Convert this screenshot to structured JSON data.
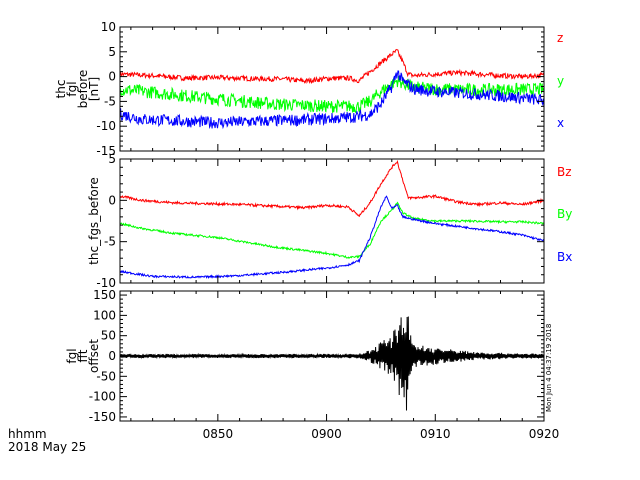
{
  "footer": {
    "line1": "hhmm",
    "line2": "2018 May 25",
    "stamp": "Mon Jun  4 04:37:19 2018"
  },
  "colors": {
    "red": "#ff0000",
    "green": "#00ff00",
    "blue": "#0000ff",
    "black": "#000000"
  },
  "chart_data": [
    {
      "type": "line",
      "ylabel_lines": [
        "thc",
        "fgl",
        "before",
        "[nT]"
      ],
      "ylim": [
        -15,
        10
      ],
      "yticks": [
        -15,
        -10,
        -5,
        0,
        5,
        10
      ],
      "xlim": [
        "08:41",
        "09:20"
      ],
      "xticks": [
        "0850",
        "0900",
        "0910",
        "0920"
      ],
      "grid": false,
      "legend": "right",
      "series": [
        {
          "name": "z",
          "color": "#ff0000",
          "noise": 0.5,
          "points": [
            [
              "08:41",
              0.5
            ],
            [
              "08:44",
              0.2
            ],
            [
              "08:47",
              -0.3
            ],
            [
              "08:50",
              -0.2
            ],
            [
              "08:53",
              -0.4
            ],
            [
              "08:56",
              -0.5
            ],
            [
              "08:58",
              -0.9
            ],
            [
              "09:00",
              -0.4
            ],
            [
              "09:02",
              -0.3
            ],
            [
              "09:03",
              -0.8
            ],
            [
              "09:04",
              1.0
            ],
            [
              "09:05",
              2.8
            ],
            [
              "09:06",
              4.5
            ],
            [
              "09:06:30",
              5.2
            ],
            [
              "09:07",
              3.0
            ],
            [
              "09:07:30",
              0.5
            ],
            [
              "09:08",
              0.2
            ],
            [
              "09:10",
              0.5
            ],
            [
              "09:12",
              0.8
            ],
            [
              "09:14",
              0.5
            ],
            [
              "09:16",
              0.2
            ],
            [
              "09:18",
              0.0
            ],
            [
              "09:20",
              0.3
            ]
          ]
        },
        {
          "name": "y",
          "color": "#00ff00",
          "noise": 1.3,
          "points": [
            [
              "08:41",
              -2.5
            ],
            [
              "08:45",
              -3.4
            ],
            [
              "08:50",
              -4.5
            ],
            [
              "08:55",
              -5.5
            ],
            [
              "09:00",
              -6.0
            ],
            [
              "09:03",
              -6.0
            ],
            [
              "09:04",
              -5.0
            ],
            [
              "09:05",
              -3.0
            ],
            [
              "09:06",
              -1.5
            ],
            [
              "09:06:30",
              -0.8
            ],
            [
              "09:07",
              -1.3
            ],
            [
              "09:08",
              -2.2
            ],
            [
              "09:10",
              -2.5
            ],
            [
              "09:14",
              -2.7
            ],
            [
              "09:17",
              -2.6
            ],
            [
              "09:20",
              -2.6
            ]
          ]
        },
        {
          "name": "x",
          "color": "#0000ff",
          "noise": 1.2,
          "points": [
            [
              "08:41",
              -7.5
            ],
            [
              "08:43",
              -8.6
            ],
            [
              "08:47",
              -9.0
            ],
            [
              "08:50",
              -9.3
            ],
            [
              "08:54",
              -9.0
            ],
            [
              "08:58",
              -8.7
            ],
            [
              "09:01",
              -8.4
            ],
            [
              "09:03",
              -8.0
            ],
            [
              "09:04",
              -7.6
            ],
            [
              "09:05",
              -5.5
            ],
            [
              "09:06",
              -2.0
            ],
            [
              "09:06:30",
              1.0
            ],
            [
              "09:07",
              -1.0
            ],
            [
              "09:07:30",
              -1.6
            ],
            [
              "09:08",
              -2.5
            ],
            [
              "09:10",
              -3.0
            ],
            [
              "09:13",
              -3.4
            ],
            [
              "09:16",
              -3.9
            ],
            [
              "09:18",
              -4.3
            ],
            [
              "09:20",
              -4.8
            ]
          ]
        }
      ]
    },
    {
      "type": "line",
      "ylabel_lines": [
        "thc_fgs_before"
      ],
      "ylim": [
        -10,
        5
      ],
      "yticks": [
        -10,
        -5,
        0,
        5
      ],
      "xlim": [
        "08:41",
        "09:20"
      ],
      "xticks": [
        "0850",
        "0900",
        "0910",
        "0920"
      ],
      "grid": false,
      "legend": "right",
      "series": [
        {
          "name": "Bz",
          "color": "#ff0000",
          "noise": 0.15,
          "points": [
            [
              "08:41",
              0.5
            ],
            [
              "08:43",
              0.0
            ],
            [
              "08:46",
              -0.3
            ],
            [
              "08:49",
              -0.4
            ],
            [
              "08:52",
              -0.5
            ],
            [
              "08:55",
              -0.7
            ],
            [
              "08:58",
              -0.9
            ],
            [
              "09:00",
              -0.6
            ],
            [
              "09:02",
              -0.8
            ],
            [
              "09:03",
              -1.9
            ],
            [
              "09:04",
              -0.3
            ],
            [
              "09:05",
              2.0
            ],
            [
              "09:06",
              4.0
            ],
            [
              "09:06:30",
              4.7
            ],
            [
              "09:07",
              2.5
            ],
            [
              "09:07:30",
              0.3
            ],
            [
              "09:08",
              0.3
            ],
            [
              "09:10",
              0.5
            ],
            [
              "09:12",
              -0.2
            ],
            [
              "09:14",
              -0.5
            ],
            [
              "09:16",
              -0.3
            ],
            [
              "09:18",
              -0.5
            ],
            [
              "09:20",
              0.0
            ]
          ]
        },
        {
          "name": "By",
          "color": "#00ff00",
          "noise": 0.12,
          "points": [
            [
              "08:41",
              -2.8
            ],
            [
              "08:43",
              -3.4
            ],
            [
              "08:46",
              -4.0
            ],
            [
              "08:50",
              -4.5
            ],
            [
              "08:55",
              -5.6
            ],
            [
              "09:00",
              -6.4
            ],
            [
              "09:02",
              -6.9
            ],
            [
              "09:03",
              -6.8
            ],
            [
              "09:04",
              -5.3
            ],
            [
              "09:05",
              -2.5
            ],
            [
              "09:06",
              -1.2
            ],
            [
              "09:06:30",
              -0.3
            ],
            [
              "09:07",
              -1.5
            ],
            [
              "09:08",
              -2.2
            ],
            [
              "09:10",
              -2.5
            ],
            [
              "09:13",
              -2.5
            ],
            [
              "09:16",
              -2.6
            ],
            [
              "09:18",
              -2.6
            ],
            [
              "09:20",
              -2.8
            ]
          ]
        },
        {
          "name": "Bx",
          "color": "#0000ff",
          "noise": 0.12,
          "points": [
            [
              "08:41",
              -8.6
            ],
            [
              "08:44",
              -9.2
            ],
            [
              "08:48",
              -9.3
            ],
            [
              "08:52",
              -9.1
            ],
            [
              "08:56",
              -8.7
            ],
            [
              "09:00",
              -8.2
            ],
            [
              "09:02",
              -7.8
            ],
            [
              "09:03",
              -7.3
            ],
            [
              "09:04",
              -4.5
            ],
            [
              "09:05",
              -0.8
            ],
            [
              "09:05:30",
              0.5
            ],
            [
              "09:06",
              -1.0
            ],
            [
              "09:06:30",
              -0.6
            ],
            [
              "09:07",
              -2.0
            ],
            [
              "09:08",
              -2.3
            ],
            [
              "09:10",
              -2.8
            ],
            [
              "09:13",
              -3.3
            ],
            [
              "09:16",
              -3.8
            ],
            [
              "09:18",
              -4.2
            ],
            [
              "09:20",
              -4.9
            ]
          ]
        }
      ]
    },
    {
      "type": "line",
      "ylabel_lines": [
        "fgl",
        "fft",
        "offset"
      ],
      "ylim": [
        -160,
        160
      ],
      "yticks": [
        -150,
        -100,
        -50,
        0,
        50,
        100,
        150
      ],
      "xlim": [
        "08:41",
        "09:20"
      ],
      "xticks": [
        "0850",
        "0900",
        "0910",
        "0920"
      ],
      "grid": false,
      "series": [
        {
          "name": "",
          "color": "#000000",
          "envelope": [
            [
              "08:41",
              5
            ],
            [
              "09:00",
              5
            ],
            [
              "09:03",
              6
            ],
            [
              "09:04",
              15
            ],
            [
              "09:05",
              35
            ],
            [
              "09:06",
              55
            ],
            [
              "09:06:30",
              90
            ],
            [
              "09:07",
              110
            ],
            [
              "09:07:20",
              150
            ],
            [
              "09:07:40",
              60
            ],
            [
              "09:08",
              35
            ],
            [
              "09:09",
              25
            ],
            [
              "09:11",
              18
            ],
            [
              "09:14",
              10
            ],
            [
              "09:17",
              7
            ],
            [
              "09:20",
              6
            ]
          ]
        }
      ]
    }
  ]
}
